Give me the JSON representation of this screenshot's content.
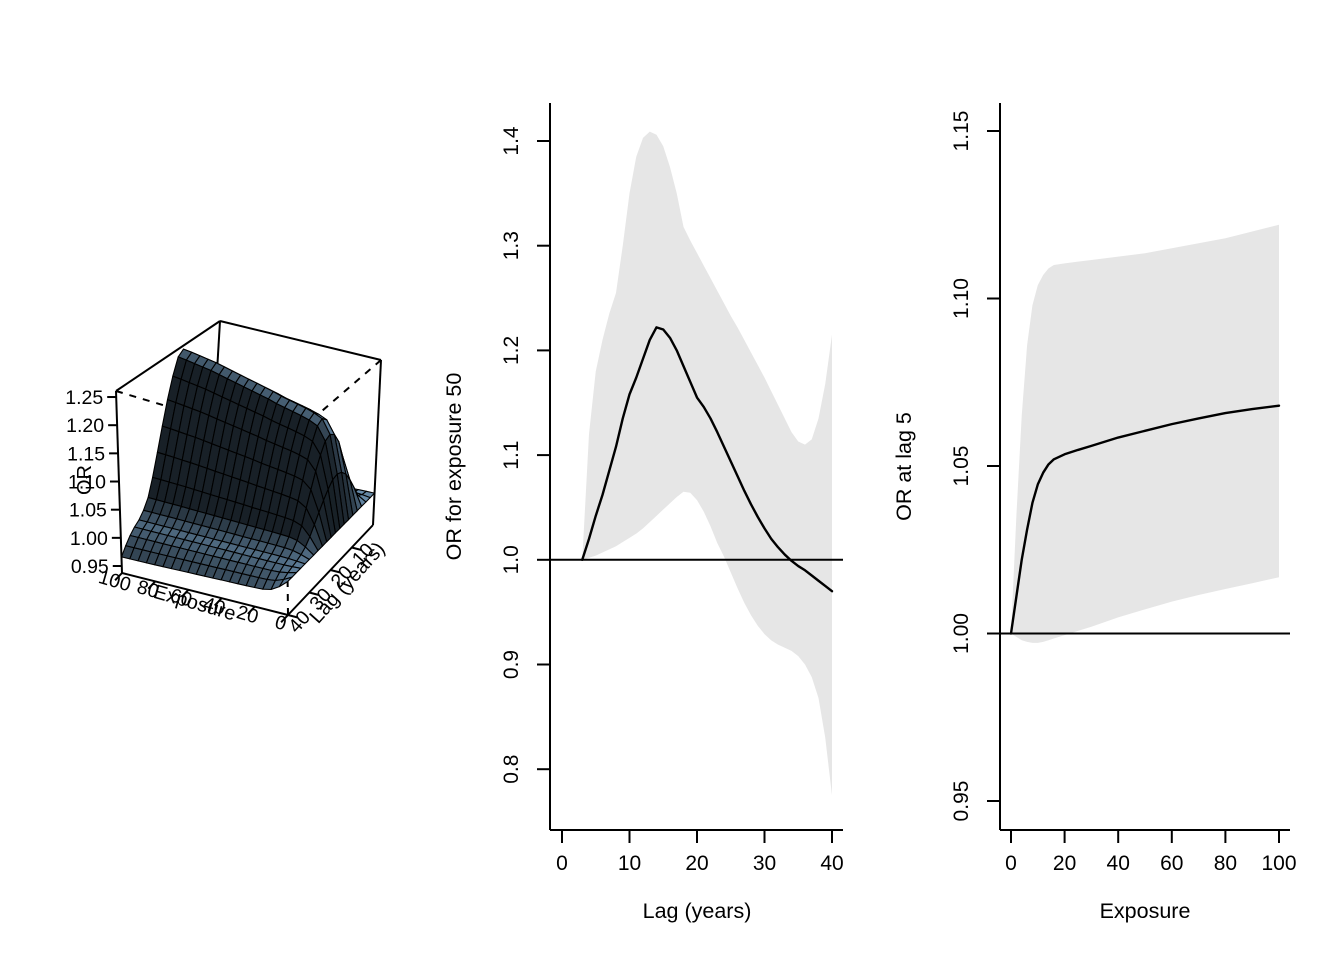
{
  "figure": {
    "background": "#ffffff",
    "line_color": "#000000",
    "ci_color": "#e6e6e6",
    "surface_base_color_rgb": [
      108,
      145,
      176
    ]
  },
  "chart_data": [
    {
      "type": "heatmap",
      "subtype": "surface3d",
      "panel": "left",
      "xlabel": "Exposure",
      "ylabel": "Lag (years)",
      "zlabel": "OR",
      "exposure_ticks": [
        100,
        80,
        60,
        40,
        20,
        0
      ],
      "exposure_tick_labels": [
        "100",
        "80",
        "60",
        "40",
        "20",
        "0"
      ],
      "lag_ticks": [
        40,
        30,
        20,
        10
      ],
      "lag_tick_labels": [
        "40",
        "30",
        "20",
        "10"
      ],
      "or_ticks": [
        0.95,
        1.0,
        1.05,
        1.1,
        1.15,
        1.2,
        1.25
      ],
      "or_tick_labels": [
        "0.95",
        "1.00",
        "1.05",
        "1.10",
        "1.15",
        "1.20",
        "1.25"
      ],
      "zlim": [
        0.9376,
        1.2607
      ],
      "exposure_grid": [
        0,
        5,
        10,
        15,
        20,
        25,
        30,
        35,
        40,
        45,
        50,
        55,
        60,
        65,
        70,
        75,
        80,
        85,
        90,
        95,
        100
      ],
      "lag_grid": [
        0,
        2,
        4,
        6,
        8,
        10,
        12,
        14,
        16,
        18,
        20,
        22,
        24,
        26,
        28,
        30,
        32,
        34,
        36,
        38,
        40
      ],
      "log_or_exposure_effect": [
        0,
        0.44,
        0.76,
        0.87,
        0.9,
        0.92,
        0.935,
        0.95,
        0.965,
        0.985,
        1.0,
        1.015,
        1.03,
        1.045,
        1.06,
        1.075,
        1.09,
        1.1,
        1.11,
        1.12,
        1.128
      ],
      "log_or_lag_effect": [
        0,
        0.005,
        0.022,
        0.074,
        0.123,
        0.166,
        0.191,
        0.2007,
        0.195,
        0.174,
        0.147,
        0.115,
        0.0825,
        0.0507,
        0.0257,
        0.0119,
        0.003,
        -0.002,
        -0.009,
        -0.019,
        -0.0305
      ],
      "surface_rule": "OR(exposure,lag) = exp(log_or_exposure_effect(exposure) * log_or_lag_effect(lag))"
    },
    {
      "type": "line",
      "panel": "middle",
      "xlabel": "Lag (years)",
      "ylabel": "OR for exposure 50",
      "xticks": [
        0,
        10,
        20,
        30,
        40
      ],
      "xtick_labels": [
        "0",
        "10",
        "20",
        "30",
        "40"
      ],
      "yticks": [
        0.8,
        0.9,
        1.0,
        1.1,
        1.2,
        1.3,
        1.4
      ],
      "ytick_labels": [
        "0.8",
        "0.9",
        "1.0",
        "1.1",
        "1.2",
        "1.3",
        "1.4"
      ],
      "ref_line": 1.0,
      "x": [
        3,
        4,
        5,
        6,
        7,
        8,
        9,
        10,
        11,
        12,
        13,
        14,
        15,
        16,
        17,
        18,
        19,
        20,
        21,
        22,
        23,
        24,
        25,
        26,
        27,
        28,
        29,
        30,
        31,
        32,
        33,
        34,
        35,
        36,
        37,
        38,
        39,
        40
      ],
      "or": [
        1.0,
        1.02,
        1.042,
        1.062,
        1.085,
        1.108,
        1.135,
        1.158,
        1.174,
        1.192,
        1.21,
        1.222,
        1.22,
        1.212,
        1.2,
        1.185,
        1.17,
        1.155,
        1.146,
        1.135,
        1.122,
        1.108,
        1.094,
        1.08,
        1.066,
        1.053,
        1.041,
        1.03,
        1.02,
        1.012,
        1.005,
        0.999,
        0.994,
        0.99,
        0.985,
        0.98,
        0.975,
        0.97
      ],
      "ci_high": [
        1.0,
        1.12,
        1.18,
        1.21,
        1.235,
        1.255,
        1.3,
        1.35,
        1.385,
        1.403,
        1.409,
        1.406,
        1.395,
        1.375,
        1.35,
        1.318,
        1.305,
        1.293,
        1.281,
        1.269,
        1.257,
        1.245,
        1.233,
        1.222,
        1.21,
        1.198,
        1.186,
        1.174,
        1.161,
        1.148,
        1.135,
        1.122,
        1.113,
        1.11,
        1.115,
        1.135,
        1.168,
        1.215
      ],
      "ci_low": [
        1.0,
        1.002,
        1.004,
        1.007,
        1.01,
        1.013,
        1.017,
        1.021,
        1.025,
        1.03,
        1.036,
        1.042,
        1.048,
        1.054,
        1.06,
        1.065,
        1.064,
        1.057,
        1.046,
        1.032,
        1.016,
        1.003,
        0.988,
        0.973,
        0.959,
        0.947,
        0.937,
        0.929,
        0.923,
        0.919,
        0.916,
        0.913,
        0.908,
        0.9,
        0.888,
        0.868,
        0.83,
        0.775
      ]
    },
    {
      "type": "line",
      "panel": "right",
      "xlabel": "Exposure",
      "ylabel": "OR at lag 5",
      "xticks": [
        0,
        20,
        40,
        60,
        80,
        100
      ],
      "xtick_labels": [
        "0",
        "20",
        "40",
        "60",
        "80",
        "100"
      ],
      "yticks": [
        0.95,
        1.0,
        1.05,
        1.1,
        1.15
      ],
      "ytick_labels": [
        "0.95",
        "1.00",
        "1.05",
        "1.10",
        "1.15"
      ],
      "ref_line": 1.0,
      "x": [
        0,
        2,
        4,
        6,
        8,
        10,
        12,
        14,
        16,
        20,
        25,
        30,
        40,
        50,
        60,
        70,
        80,
        90,
        100
      ],
      "or": [
        1.0,
        1.011,
        1.022,
        1.031,
        1.039,
        1.0445,
        1.048,
        1.0505,
        1.052,
        1.0535,
        1.0548,
        1.056,
        1.0585,
        1.0605,
        1.0625,
        1.0642,
        1.0658,
        1.067,
        1.068
      ],
      "ci_high": [
        1.0,
        1.035,
        1.065,
        1.086,
        1.098,
        1.104,
        1.107,
        1.109,
        1.11,
        1.1105,
        1.111,
        1.1115,
        1.1125,
        1.1135,
        1.115,
        1.1165,
        1.118,
        1.12,
        1.122
      ],
      "ci_low": [
        1.0,
        0.999,
        0.998,
        0.9975,
        0.9972,
        0.9972,
        0.9975,
        0.998,
        0.9985,
        0.9995,
        1.0008,
        1.002,
        1.0048,
        1.0072,
        1.0095,
        1.0115,
        1.0133,
        1.015,
        1.0168
      ]
    }
  ]
}
